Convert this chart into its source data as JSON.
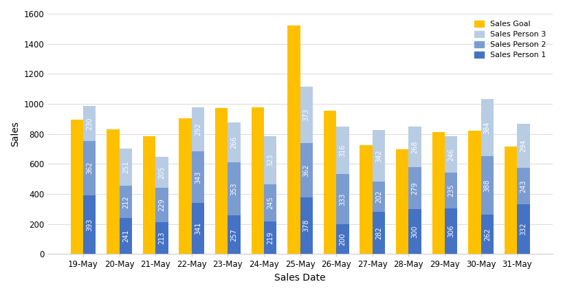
{
  "dates": [
    "19-May",
    "20-May",
    "21-May",
    "22-May",
    "23-May",
    "24-May",
    "25-May",
    "26-May",
    "27-May",
    "28-May",
    "29-May",
    "30-May",
    "31-May"
  ],
  "sales_person1": [
    393,
    241,
    213,
    341,
    257,
    219,
    378,
    200,
    282,
    300,
    306,
    262,
    332
  ],
  "sales_person2": [
    362,
    212,
    229,
    343,
    353,
    245,
    362,
    333,
    202,
    279,
    235,
    388,
    243
  ],
  "sales_person3": [
    230,
    251,
    205,
    292,
    266,
    323,
    373,
    316,
    342,
    268,
    246,
    384,
    294
  ],
  "sales_goal": [
    893,
    829,
    783,
    903,
    973,
    975,
    1524,
    953,
    724,
    700,
    812,
    820,
    717
  ],
  "color_person1": "#4472C4",
  "color_person2": "#7B9CD1",
  "color_person3": "#B8CCE4",
  "color_goal": "#FFC000",
  "xlabel": "Sales Date",
  "ylabel": "Sales",
  "ylim_max": 1600,
  "yticks": [
    0,
    200,
    400,
    600,
    800,
    1000,
    1200,
    1400,
    1600
  ],
  "legend_labels": [
    "Sales Goal",
    "Sales Person 3",
    "Sales Person 2",
    "Sales Person 1"
  ],
  "bar_width": 0.35,
  "label_fontsize": 7.0,
  "axis_fontsize": 10,
  "tick_fontsize": 8.5
}
